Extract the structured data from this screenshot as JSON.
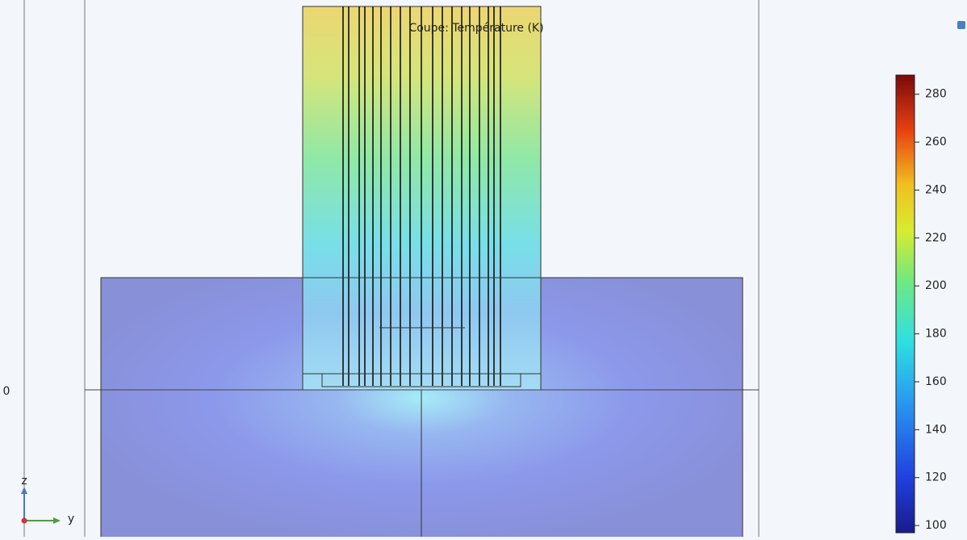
{
  "plot": {
    "title": "Coupe: Température (K)",
    "colorbar": {
      "range": [
        97,
        288
      ],
      "ticks": [
        100,
        120,
        140,
        160,
        180,
        200,
        220,
        240,
        260,
        280
      ]
    },
    "axes": {
      "origin_label": "0",
      "z_label": "z",
      "y_label": "y"
    }
  }
}
